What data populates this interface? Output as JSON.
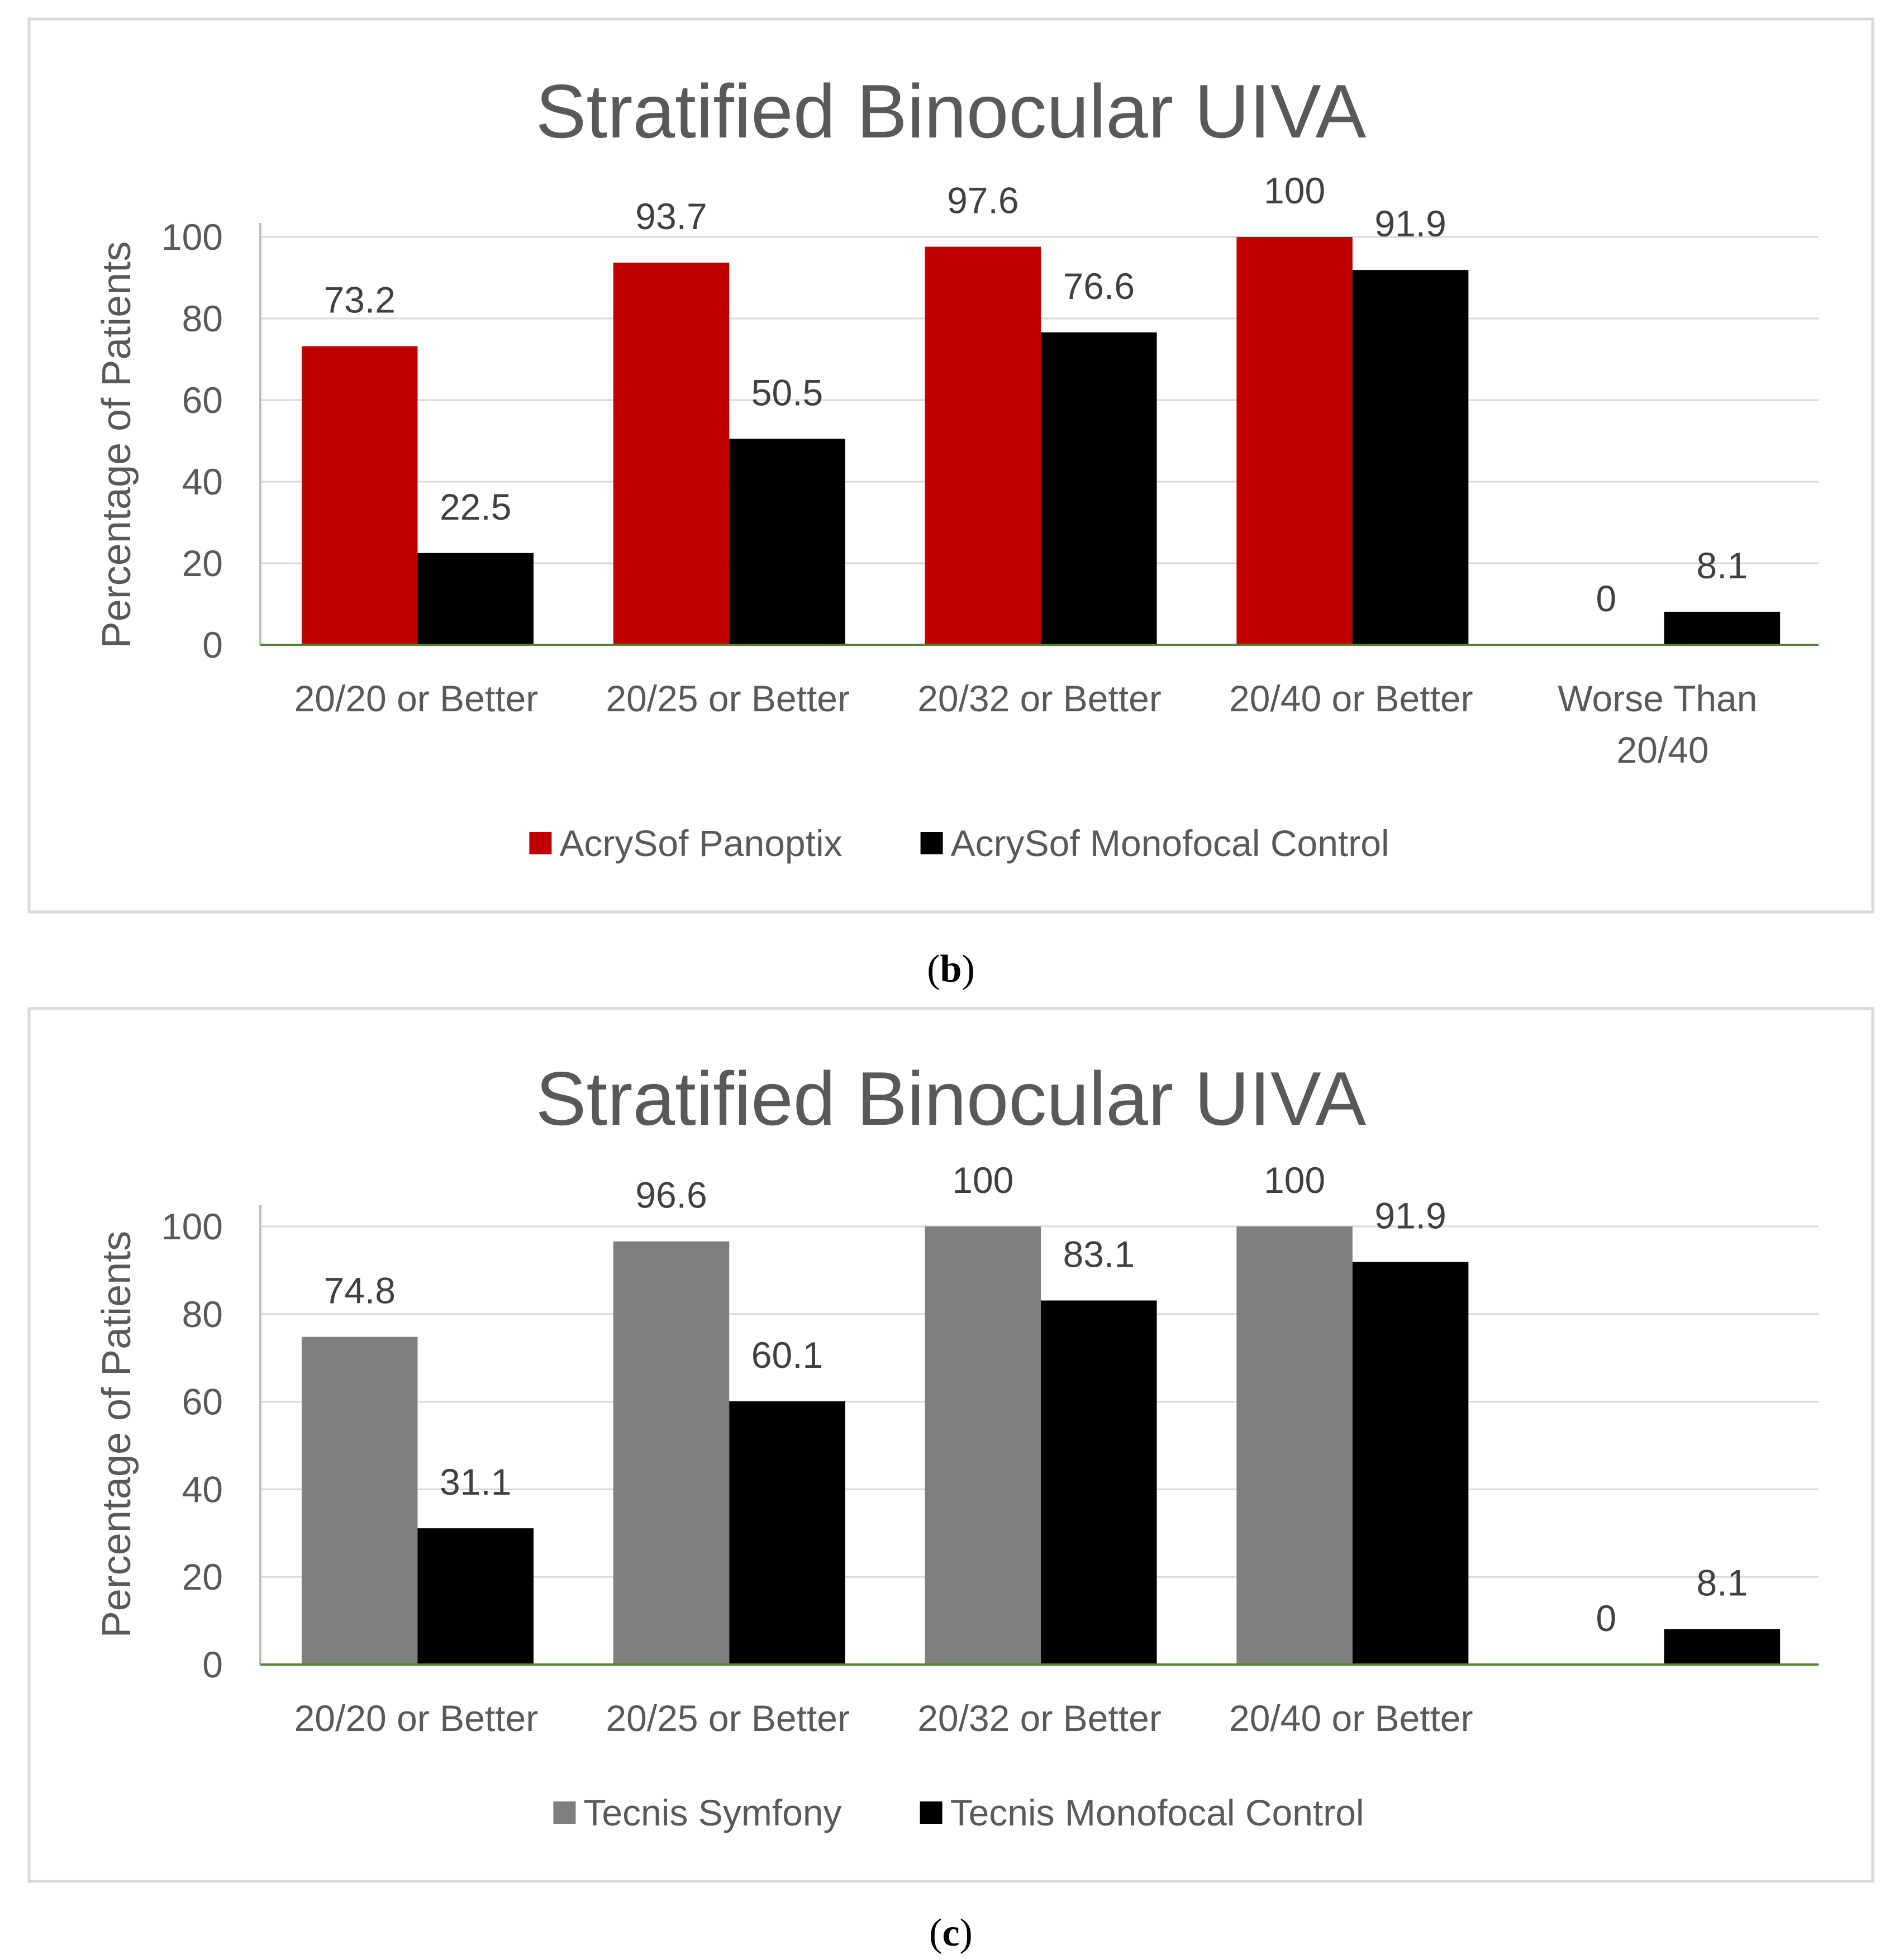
{
  "chart_data": [
    {
      "type": "bar",
      "title": "Stratified Binocular UIVA",
      "ylabel": "Percentage of Patients",
      "ylim": [
        0,
        100
      ],
      "yticks": [
        0,
        20,
        40,
        60,
        80,
        100
      ],
      "grid": true,
      "legend_position": "bottom",
      "categories": [
        "20/20 or Better",
        "20/25 or Better",
        "20/32 or Better",
        "20/40 or Better",
        "Worse Than 20/40"
      ],
      "series": [
        {
          "name": "AcrySof Panoptix",
          "color": "#C00000",
          "values": [
            73.2,
            93.7,
            97.6,
            100,
            0
          ]
        },
        {
          "name": "AcrySof Monofocal Control",
          "color": "#000000",
          "values": [
            22.5,
            50.5,
            76.6,
            91.9,
            8.1
          ]
        }
      ]
    },
    {
      "type": "bar",
      "title": "Stratified Binocular UIVA",
      "ylabel": "Percentage of Patients",
      "ylim": [
        0,
        100
      ],
      "yticks": [
        0,
        20,
        40,
        60,
        80,
        100
      ],
      "grid": true,
      "legend_position": "bottom",
      "categories": [
        "20/20 or Better",
        "20/25 or Better",
        "20/32 or Better",
        "20/40 or Better",
        ""
      ],
      "series": [
        {
          "name": "Tecnis Symfony",
          "color": "#7F7F7F",
          "values": [
            74.8,
            96.6,
            100,
            100,
            0
          ]
        },
        {
          "name": "Tecnis Monofocal Control",
          "color": "#000000",
          "values": [
            31.1,
            60.1,
            83.1,
            91.9,
            8.1
          ]
        }
      ]
    }
  ],
  "figure": {
    "captions": [
      "(b)",
      "(c)"
    ]
  }
}
